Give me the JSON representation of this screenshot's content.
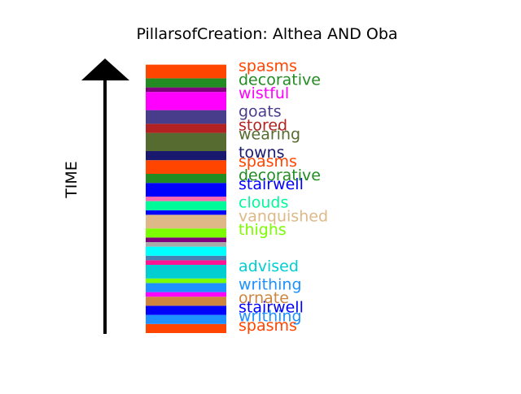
{
  "chart_data": {
    "type": "bar",
    "title": "PillarsofCreation: Althea AND Oba",
    "ylabel": "TIME",
    "ylim": [
      0,
      30
    ],
    "segments": [
      {
        "color": "#ff4500",
        "label": "spasms"
      },
      {
        "color": "#1e90ff",
        "label": "writhing"
      },
      {
        "color": "#0000ff",
        "label": "stairwell"
      },
      {
        "color": "#cd853f",
        "label": "ornate"
      },
      {
        "color": "#ff00ff",
        "label": ""
      },
      {
        "color": "#1e90ff",
        "label": "writhing"
      },
      {
        "color": "#7cfc00",
        "label": ""
      },
      {
        "color": "#00ced1",
        "label": "advised"
      },
      {
        "color": "#ff1493",
        "label": ""
      },
      {
        "color": "#4682b4",
        "label": ""
      },
      {
        "color": "#00ffff",
        "label": ""
      },
      {
        "color": "#a9a9a9",
        "label": ""
      },
      {
        "color": "#800080",
        "label": ""
      },
      {
        "color": "#7cfc00",
        "label": "thighs"
      },
      {
        "color": "#deb887",
        "label": "vanquished"
      },
      {
        "color": "#0000ff",
        "label": ""
      },
      {
        "color": "#00fa9a",
        "label": "clouds"
      },
      {
        "color": "#ff69b4",
        "label": ""
      },
      {
        "color": "#0000ff",
        "label": "stairwell"
      },
      {
        "color": "#228b22",
        "label": "decorative"
      },
      {
        "color": "#ff4500",
        "label": "spasms"
      },
      {
        "color": "#191970",
        "label": "towns"
      },
      {
        "color": "#556b2f",
        "label": "wearing"
      },
      {
        "color": "#b22222",
        "label": "stored"
      },
      {
        "color": "#483d8b",
        "label": "goats"
      },
      {
        "color": "#ff00ff",
        "label": "wistful"
      },
      {
        "color": "#800080",
        "label": ""
      },
      {
        "color": "#228b22",
        "label": "decorative"
      },
      {
        "color": "#ff4500",
        "label": "spasms"
      }
    ],
    "boundaries": [
      0,
      1,
      2,
      3,
      4,
      4.5,
      5.5,
      6,
      7.5,
      8,
      8.5,
      9.5,
      10,
      10.5,
      11.5,
      13,
      13.5,
      14.5,
      15,
      16.5,
      17.5,
      19,
      20,
      22,
      23,
      24.5,
      26.5,
      27,
      28,
      29.5
    ]
  }
}
